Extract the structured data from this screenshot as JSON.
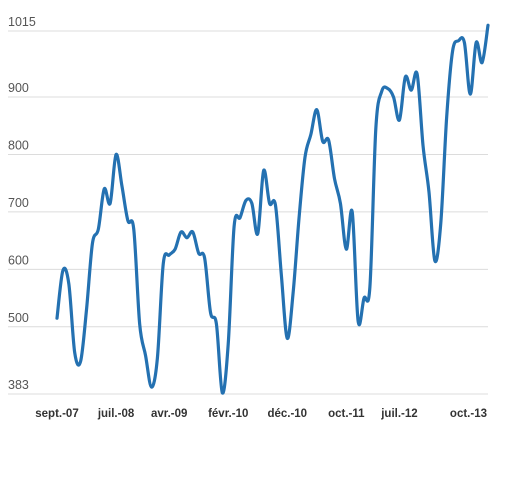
{
  "chart_data": {
    "type": "line",
    "title": "",
    "xlabel": "",
    "ylabel": "",
    "ylim": [
      383,
      1015
    ],
    "yticks": [
      383,
      500,
      600,
      700,
      800,
      900,
      1015
    ],
    "ytick_labels": [
      "383",
      "500",
      "600",
      "700",
      "800",
      "900",
      "1015"
    ],
    "x_tick_positions": [
      0,
      10,
      19,
      29,
      39,
      49,
      58,
      73
    ],
    "x_tick_labels": [
      "sept.-07",
      "juil.-08",
      "avr.-09",
      "févr.-10",
      "déc.-10",
      "oct.-11",
      "juil.-12",
      "oct.-13"
    ],
    "grid": true,
    "legend": "none",
    "series": [
      {
        "color": "#2471b1",
        "values": [
          515,
          598,
          575,
          455,
          440,
          530,
          645,
          670,
          740,
          715,
          800,
          745,
          685,
          670,
          505,
          450,
          395,
          445,
          610,
          625,
          635,
          665,
          655,
          665,
          628,
          620,
          525,
          505,
          385,
          470,
          675,
          690,
          720,
          715,
          662,
          772,
          715,
          712,
          590,
          480,
          560,
          690,
          795,
          835,
          878,
          823,
          825,
          758,
          715,
          635,
          700,
          510,
          550,
          570,
          845,
          910,
          915,
          900,
          860,
          935,
          912,
          940,
          815,
          735,
          615,
          680,
          865,
          980,
          998,
          995,
          905,
          995,
          960,
          1025
        ]
      }
    ]
  }
}
